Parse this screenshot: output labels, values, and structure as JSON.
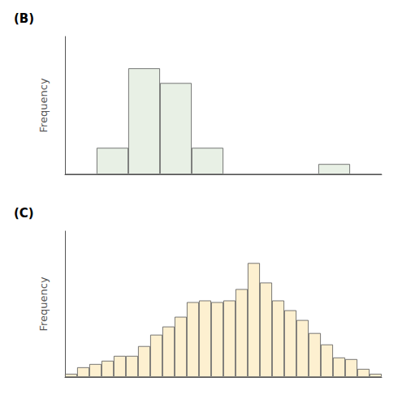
{
  "chart_data": [
    {
      "type": "bar",
      "title": "(B)",
      "ylabel": "Frequency",
      "categories": [
        null,
        null,
        null,
        null,
        null,
        null,
        null,
        null,
        null,
        null
      ],
      "values": [
        0.0,
        0.18,
        0.72,
        0.62,
        0.18,
        0.0,
        0.0,
        0.0,
        0.07,
        0.0
      ],
      "color": "#e8f0e5",
      "ylim": [
        0,
        0.936
      ],
      "tick_labels": false,
      "grid": false
    },
    {
      "type": "bar",
      "title": "(C)",
      "ylabel": "Frequency",
      "categories": [
        null,
        null,
        null,
        null,
        null,
        null,
        null,
        null,
        null,
        null,
        null,
        null,
        null,
        null,
        null,
        null,
        null,
        null,
        null,
        null,
        null,
        null,
        null,
        null,
        null,
        null
      ],
      "values": [
        0.02,
        0.06,
        0.08,
        0.1,
        0.13,
        0.13,
        0.19,
        0.26,
        0.31,
        0.37,
        0.46,
        0.47,
        0.46,
        0.47,
        0.54,
        0.7,
        0.58,
        0.47,
        0.41,
        0.35,
        0.27,
        0.2,
        0.12,
        0.11,
        0.05,
        0.02
      ],
      "color": "#fdf0d0",
      "ylim": [
        0,
        0.896
      ],
      "tick_labels": false,
      "grid": false
    }
  ]
}
